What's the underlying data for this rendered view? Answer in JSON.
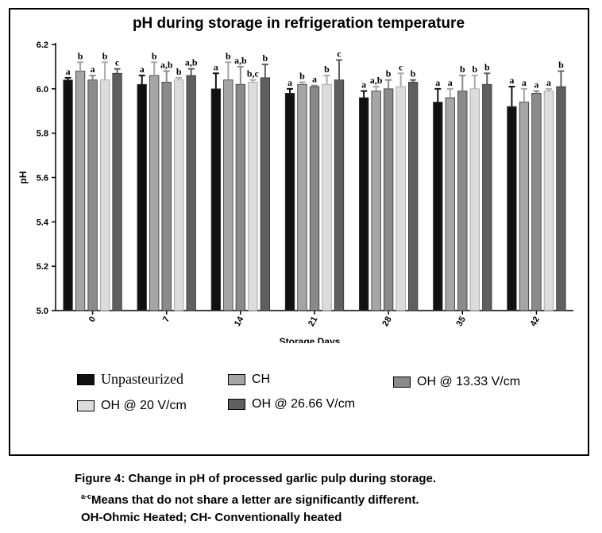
{
  "chart_data": {
    "type": "bar",
    "title": "pH during storage in refrigeration temperature",
    "xlabel": "Storage Days",
    "ylabel": "pH",
    "ylim": [
      5.0,
      6.2
    ],
    "yticks": [
      "5.0",
      "5.2",
      "5.4",
      "5.6",
      "5.8",
      "6.0",
      "6.2"
    ],
    "categories": [
      "0",
      "7",
      "14",
      "21",
      "28",
      "35",
      "42"
    ],
    "legend_position": "bottom",
    "series": [
      {
        "name": "Unpasteurized",
        "color": "#111111",
        "values": [
          6.04,
          6.02,
          6.0,
          5.98,
          5.96,
          5.94,
          5.92
        ],
        "errors": [
          0.01,
          0.04,
          0.07,
          0.02,
          0.03,
          0.06,
          0.09
        ],
        "letters": [
          "a",
          "a",
          "a",
          "a",
          "a",
          "a",
          "a"
        ]
      },
      {
        "name": "CH",
        "color": "#a5a5a5",
        "values": [
          6.08,
          6.06,
          6.04,
          6.02,
          5.99,
          5.96,
          5.94
        ],
        "errors": [
          0.04,
          0.06,
          0.08,
          0.01,
          0.02,
          0.04,
          0.06
        ],
        "letters": [
          "b",
          "b",
          "b",
          "b",
          "a,b",
          "a",
          "a"
        ]
      },
      {
        "name": "OH @ 13.33 V/cm",
        "color": "#8a8a8a",
        "values": [
          6.04,
          6.03,
          6.02,
          6.01,
          6.0,
          5.99,
          5.98
        ],
        "errors": [
          0.02,
          0.05,
          0.08,
          0.005,
          0.04,
          0.07,
          0.01
        ],
        "letters": [
          "a",
          "a,b",
          "a,b",
          "a",
          "b",
          "b",
          "a"
        ]
      },
      {
        "name": "OH @ 20 V/cm",
        "color": "#dcdcdc",
        "values": [
          6.04,
          6.04,
          6.03,
          6.02,
          6.01,
          6.0,
          5.99
        ],
        "errors": [
          0.08,
          0.01,
          0.01,
          0.04,
          0.06,
          0.06,
          0.01
        ],
        "letters": [
          "b",
          "b",
          "b,c",
          "b",
          "c",
          "b",
          "a"
        ]
      },
      {
        "name": "OH @ 26.66 V/cm",
        "color": "#5f5f5f",
        "values": [
          6.07,
          6.06,
          6.05,
          6.04,
          6.03,
          6.02,
          6.01
        ],
        "errors": [
          0.02,
          0.03,
          0.06,
          0.09,
          0.01,
          0.05,
          0.07
        ],
        "letters": [
          "c",
          "a,b",
          "b",
          "c",
          "b",
          "b",
          "b"
        ]
      }
    ]
  },
  "legend": [
    {
      "name": "Unpasteurized",
      "color": "#111111"
    },
    {
      "name": "CH",
      "color": "#a5a5a5"
    },
    {
      "name": "OH @ 13.33 V/cm",
      "color": "#8a8a8a"
    },
    {
      "name": "OH @ 20 V/cm",
      "color": "#dcdcdc"
    },
    {
      "name": "OH @ 26.66 V/cm",
      "color": "#5f5f5f"
    }
  ],
  "caption": {
    "line1": "Figure 4: Change in pH of processed garlic pulp during storage.",
    "line2_sup": "a-c",
    "line2": "Means that do not share a letter are significantly different.",
    "line3": "OH-Ohmic Heated; CH- Conventionally heated"
  }
}
